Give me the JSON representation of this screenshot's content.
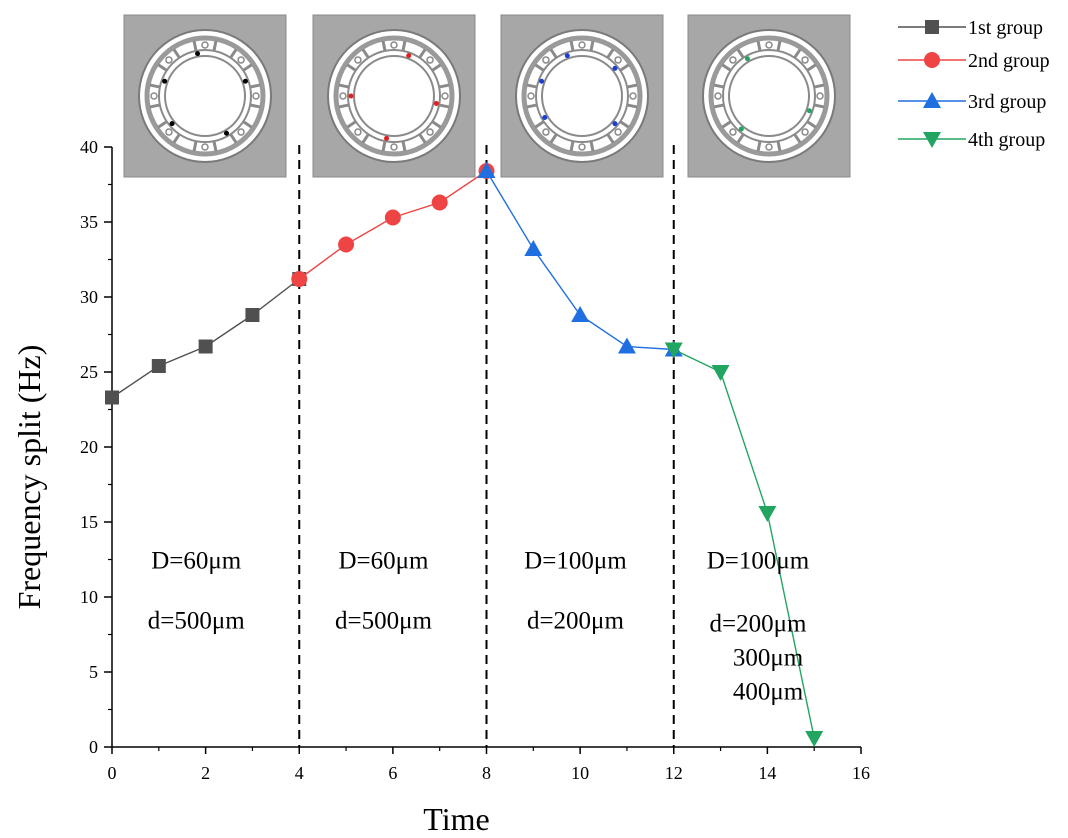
{
  "chart_data": {
    "type": "line",
    "xlabel": "Time",
    "ylabel": "Frequency split (Hz)",
    "xlim": [
      0,
      16
    ],
    "ylim": [
      0,
      40
    ],
    "xticks": [
      0,
      2,
      4,
      6,
      8,
      10,
      12,
      14,
      16
    ],
    "yticks": [
      0,
      5,
      10,
      15,
      20,
      25,
      30,
      35,
      40
    ],
    "grid": false,
    "legend_position": "top-right",
    "dividers_x": [
      4,
      8,
      12
    ],
    "series": [
      {
        "name": "1st group",
        "color": "#505050",
        "marker": "square",
        "x": [
          0,
          1,
          2,
          3,
          4
        ],
        "y": [
          23.3,
          25.4,
          26.7,
          28.8,
          31.2
        ]
      },
      {
        "name": "2nd group",
        "color": "#ef4444",
        "marker": "circle",
        "x": [
          4,
          5,
          6,
          7,
          8
        ],
        "y": [
          31.2,
          33.5,
          35.3,
          36.3,
          38.4
        ]
      },
      {
        "name": "3rd group",
        "color": "#1f6fe0",
        "marker": "triangle-up",
        "x": [
          8,
          9,
          10,
          11,
          12
        ],
        "y": [
          38.4,
          33.2,
          28.8,
          26.7,
          26.5
        ]
      },
      {
        "name": "4th group",
        "color": "#22a560",
        "marker": "triangle-down",
        "x": [
          12,
          13,
          14,
          15
        ],
        "y": [
          26.5,
          25.0,
          15.6,
          0.6
        ]
      }
    ],
    "annotations": [
      {
        "lines": [
          "D=60μm",
          "d=500μm"
        ],
        "x_center": 1.8,
        "y_top": 11.9
      },
      {
        "lines": [
          "D=60μm",
          "d=500μm"
        ],
        "x_center": 5.8,
        "y_top": 11.9
      },
      {
        "lines": [
          "D=100μm",
          "d=200μm"
        ],
        "x_center": 9.9,
        "y_top": 11.9
      },
      {
        "lines": [
          "D=100μm",
          "d=200μm",
          "300μm",
          "400μm"
        ],
        "x_center": 13.8,
        "y_top": 11.9
      }
    ],
    "insets": [
      {
        "group": "1st group",
        "dot_color": "#000000"
      },
      {
        "group": "2nd group",
        "dot_color": "#e02020"
      },
      {
        "group": "3rd group",
        "dot_color": "#1a3fd0"
      },
      {
        "group": "4th group",
        "dot_color": "#22a560"
      }
    ]
  }
}
